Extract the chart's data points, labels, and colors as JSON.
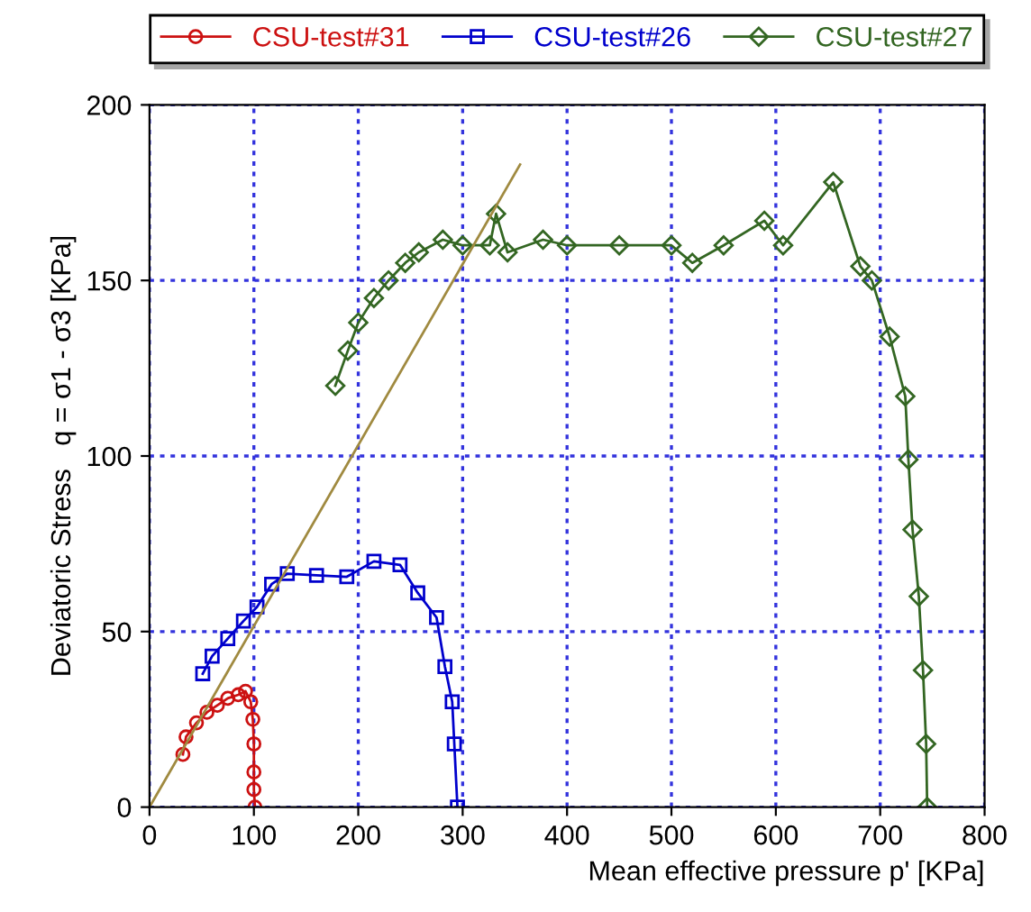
{
  "chart_data": {
    "type": "line",
    "xlabel": "Mean effective pressure p' [KPa]",
    "ylabel": "Deviatoric Stress   q = σ1 - σ3 [KPa]",
    "xlim": [
      0,
      800
    ],
    "ylim": [
      0,
      200
    ],
    "xticks": [
      0,
      100,
      200,
      300,
      400,
      500,
      600,
      700,
      800
    ],
    "yticks": [
      0,
      50,
      100,
      150,
      200
    ],
    "grid": true,
    "legend": "top",
    "line_style": "solid",
    "series": [
      {
        "name": "CSU-test#31",
        "color": "#cc1111",
        "marker": "circle",
        "x": [
          32,
          35,
          45,
          55,
          65,
          75,
          85,
          92,
          97,
          99,
          100,
          100,
          100,
          101
        ],
        "values": [
          15,
          20,
          24,
          27,
          29,
          31,
          32,
          33,
          30,
          25,
          18,
          10,
          5,
          0
        ]
      },
      {
        "name": "CSU-test#26",
        "color": "#0000cc",
        "marker": "square",
        "x": [
          51,
          60,
          75,
          90,
          103,
          117,
          132,
          160,
          189,
          215,
          240,
          257,
          275,
          283,
          290,
          292,
          295
        ],
        "values": [
          38,
          43,
          48,
          53,
          57,
          63.5,
          66.5,
          66,
          65.6,
          70,
          69,
          61,
          54,
          40,
          30,
          18,
          0
        ]
      },
      {
        "name": "CSU-test#27",
        "color": "#336622",
        "marker": "diamond",
        "x": [
          178,
          190,
          200,
          215,
          229,
          245,
          258,
          281,
          300,
          326,
          332,
          343,
          377,
          400,
          450,
          500,
          520,
          550,
          589,
          607,
          655,
          681,
          692,
          709,
          724,
          727,
          731,
          737,
          741,
          744,
          745
        ],
        "values": [
          120,
          130,
          138,
          145,
          150,
          155,
          158,
          161.6,
          160,
          160,
          169,
          158,
          161.6,
          160,
          160,
          160,
          155,
          160,
          167,
          160,
          178,
          154,
          150,
          134,
          117,
          99,
          79,
          60,
          39,
          18,
          0
        ]
      },
      {
        "type": "line",
        "color": "#a08a40",
        "marker": "none",
        "x": [
          0,
          355
        ],
        "values": [
          0,
          183
        ]
      }
    ]
  }
}
